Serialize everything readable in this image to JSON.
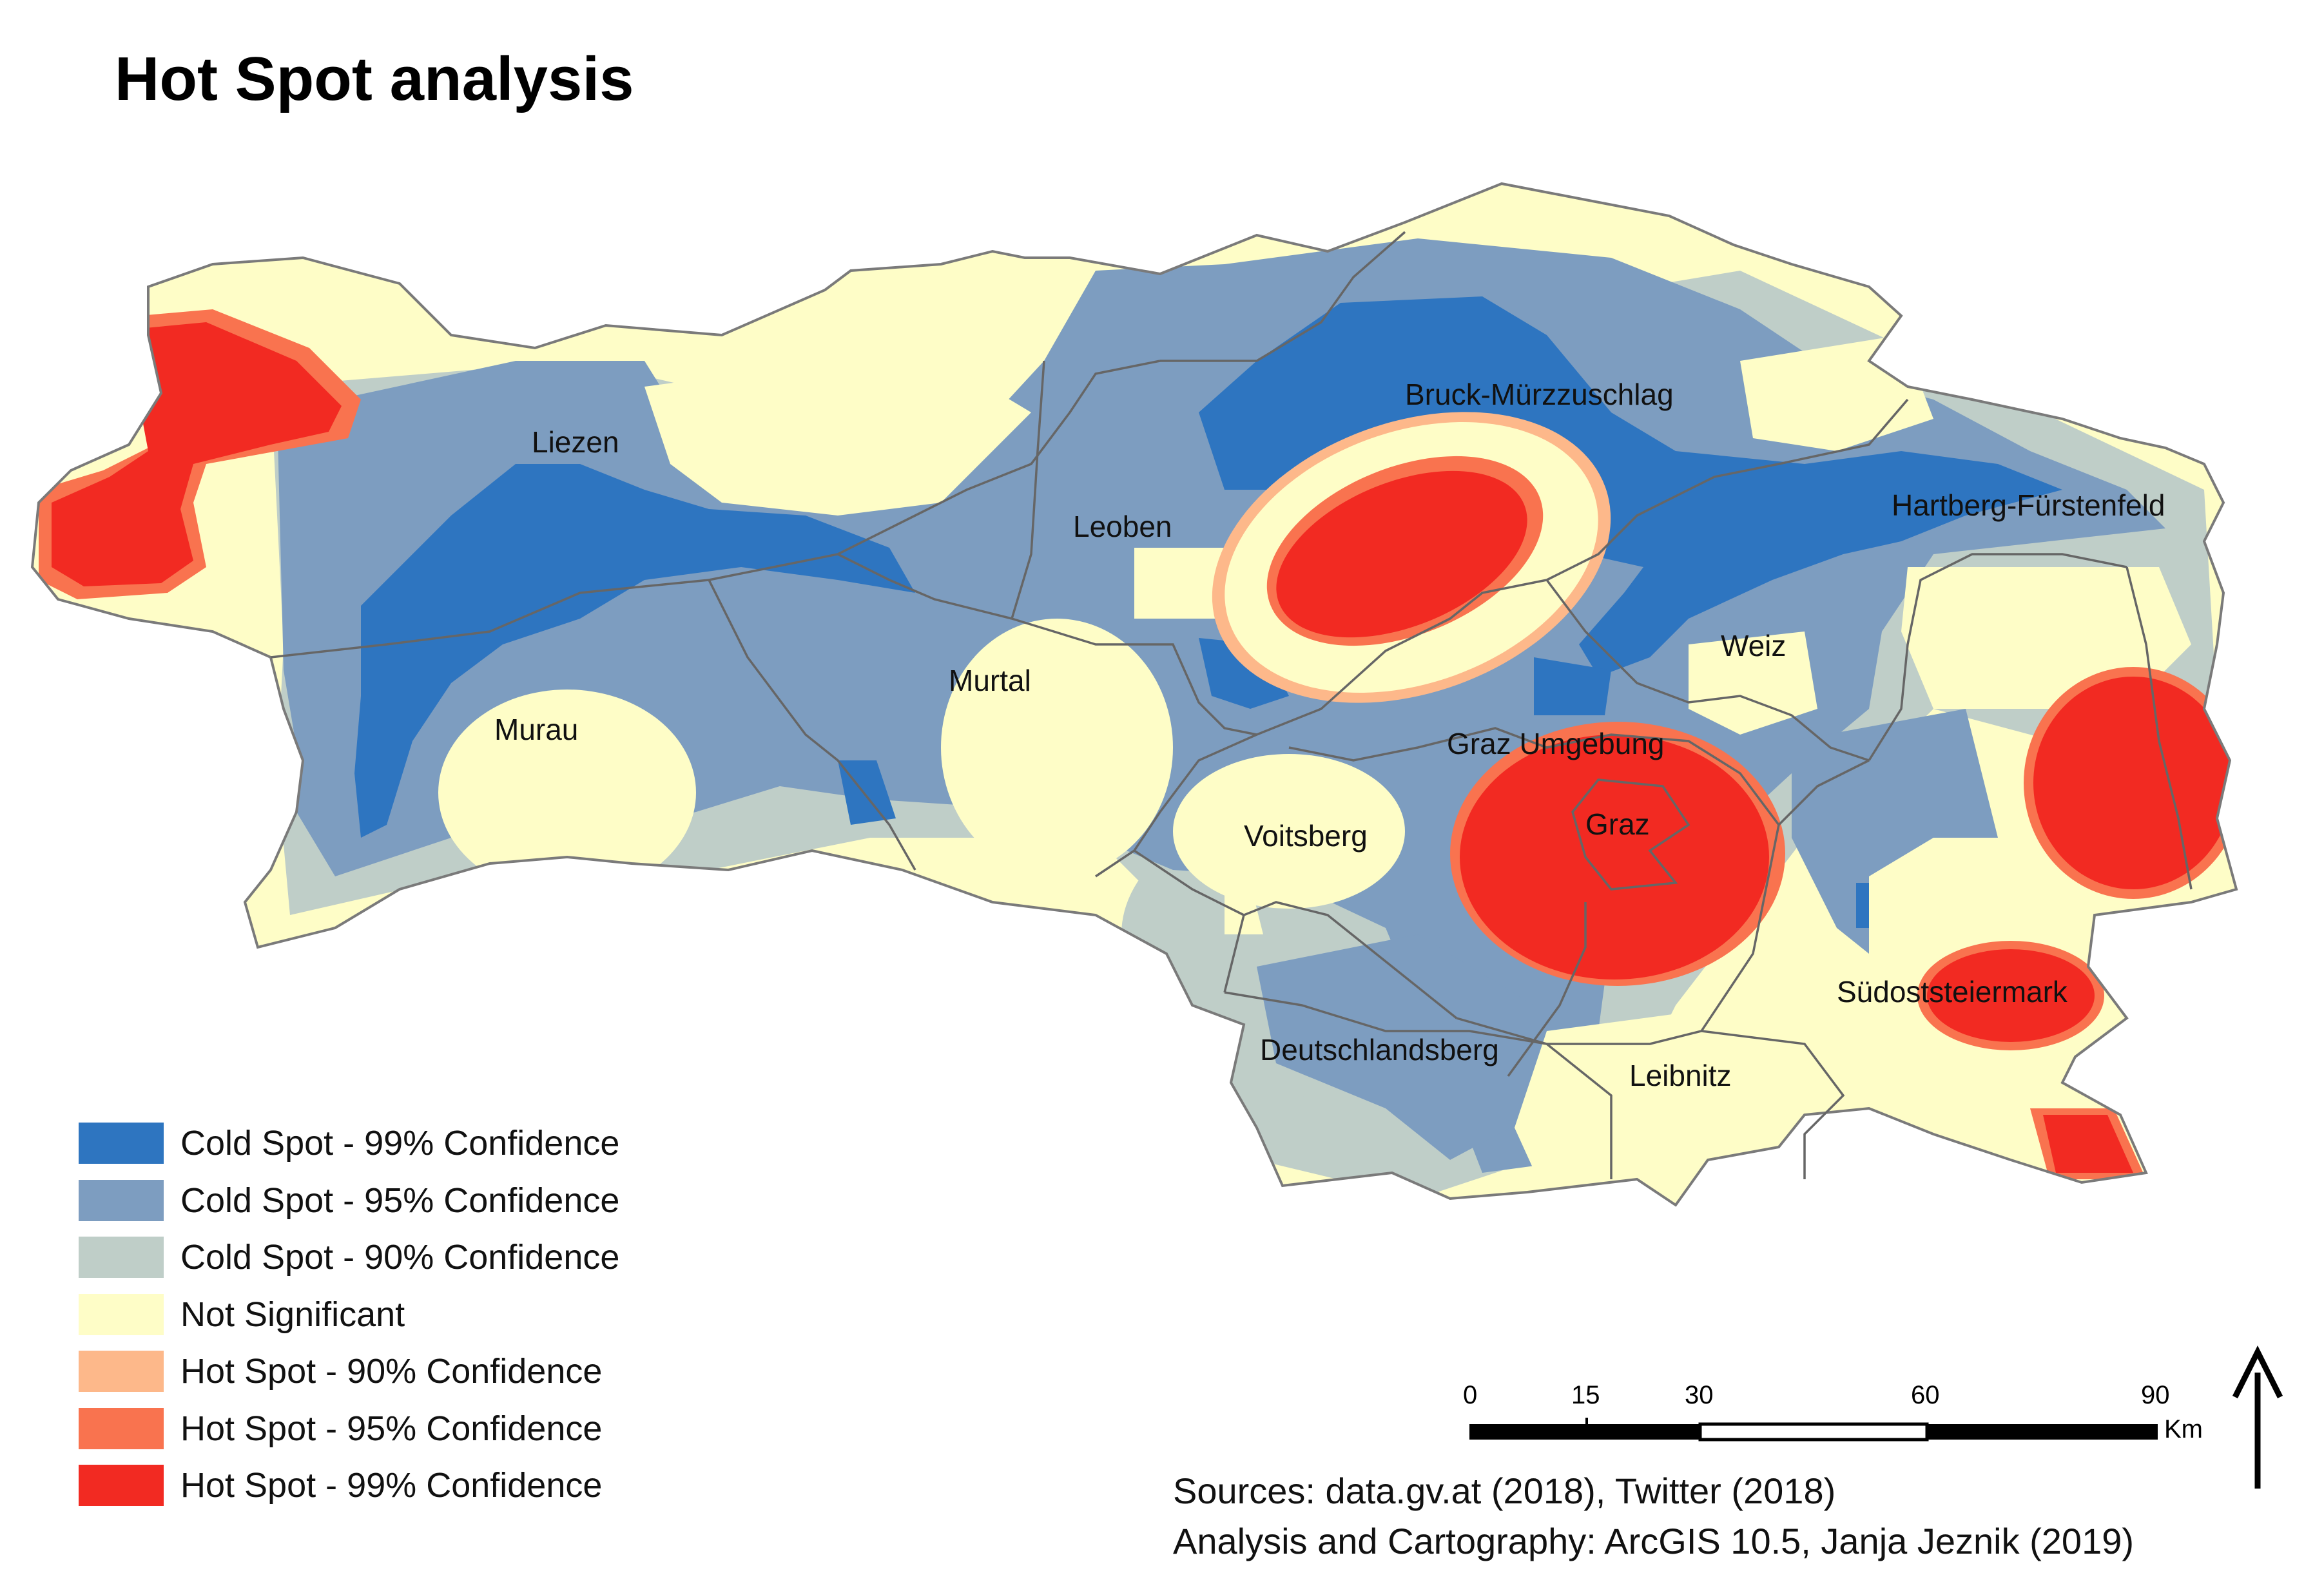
{
  "title": "Hot Spot analysis",
  "colors": {
    "cold99": "#2e75c0",
    "cold95": "#7d9dc0",
    "cold90": "#bfcec8",
    "not_significant": "#fefdc7",
    "hot90": "#fdb88a",
    "hot95": "#f9734f",
    "hot99": "#f22a22",
    "boundary": "#666666"
  },
  "legend": [
    {
      "label": "Cold Spot - 99% Confidence",
      "color": "#2e75c0"
    },
    {
      "label": "Cold Spot - 95% Confidence",
      "color": "#7d9dc0"
    },
    {
      "label": "Cold Spot - 90% Confidence",
      "color": "#bfcec8"
    },
    {
      "label": "Not Significant",
      "color": "#fefdc7"
    },
    {
      "label": "Hot Spot - 90% Confidence",
      "color": "#fdb88a"
    },
    {
      "label": "Hot Spot - 95% Confidence",
      "color": "#f9734f"
    },
    {
      "label": "Hot Spot - 99% Confidence",
      "color": "#f22a22"
    }
  ],
  "districts": [
    "Liezen",
    "Bruck-Mürzzuschlag",
    "Leoben",
    "Hartberg-Fürstenfeld",
    "Weiz",
    "Murtal",
    "Murau",
    "Graz Umgebung",
    "Graz",
    "Voitsberg",
    "Südoststeiermark",
    "Deutschlandsberg",
    "Leibnitz"
  ],
  "scale_bar": {
    "ticks": [
      "0",
      "15",
      "30",
      "60",
      "90"
    ],
    "unit": "Km"
  },
  "north_arrow": "north-arrow-icon",
  "credits": {
    "sources": "Sources: data.gv.at (2018), Twitter (2018)",
    "analysis": "Analysis and Cartography: ArcGIS 10.5, Janja Jeznik (2019)"
  }
}
